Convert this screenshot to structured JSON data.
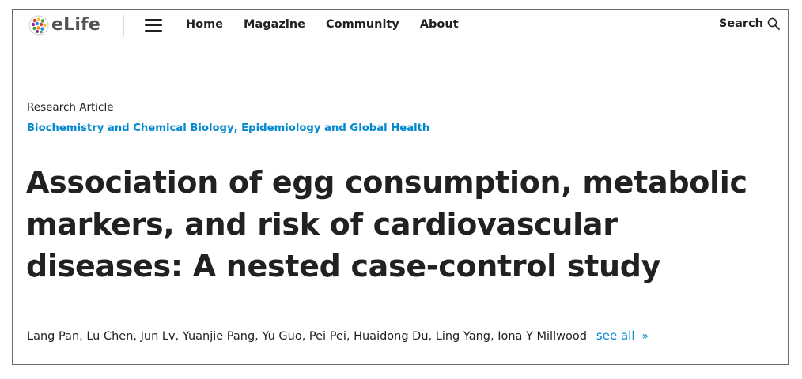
{
  "header": {
    "logo_text": "eLife",
    "nav": [
      "Home",
      "Magazine",
      "Community",
      "About"
    ],
    "search_label": "Search"
  },
  "article": {
    "type": "Research Article",
    "subjects": [
      "Biochemistry and Chemical Biology",
      "Epidemiology and Global Health"
    ],
    "subject_separator": ", ",
    "title": "Association of egg consumption, metabolic markers, and risk of cardiovascular diseases: A nested case-control study",
    "authors": "Lang Pan, Lu Chen, Jun Lv, Yuanjie Pang, Yu Guo, Pei Pei, Huaidong Du, Ling Yang, Iona Y Millwood",
    "see_all_label": "see all",
    "see_all_chevron": "»"
  },
  "colors": {
    "text": "#212121",
    "link": "#0288d1",
    "logo_text": "#535353",
    "border": "#6b6b6b"
  },
  "icons": [
    "elife-logo-icon",
    "hamburger-menu-icon",
    "search-icon"
  ]
}
